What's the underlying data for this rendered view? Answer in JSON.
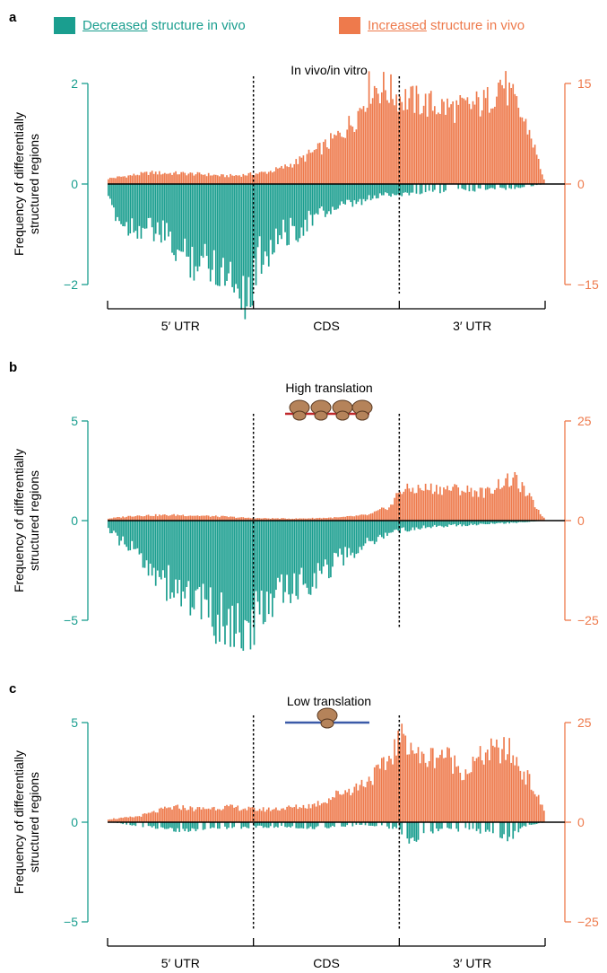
{
  "colors": {
    "decreased": "#1a9e8f",
    "increased": "#ee7a4c",
    "high_mrna": "#c0282b",
    "low_mrna": "#3b5aa8",
    "ribosome": "#b5835a"
  },
  "legend": {
    "decreased_underlined": "Decreased",
    "decreased_rest": " structure in vivo",
    "increased_underlined": "Increased",
    "increased_rest": " structure in vivo"
  },
  "ylabel_line1": "Frequency of differentially",
  "ylabel_line2": "structured regions",
  "region_labels": [
    "5′ UTR",
    "CDS",
    "3′ UTR"
  ],
  "chart_data": [
    {
      "panel": "a",
      "type": "bar",
      "title": "In vivo/in vitro",
      "regions": [
        "5′ UTR",
        "CDS",
        "3′ UTR"
      ],
      "left_axis": {
        "ticks": [
          2,
          0,
          -2
        ],
        "ylim": [
          -2,
          2
        ],
        "color": "#1a9e8f"
      },
      "right_axis": {
        "ticks": [
          15,
          0,
          -15
        ],
        "ylim": [
          -15,
          15
        ],
        "color": "#ee7a4c"
      },
      "series": [
        {
          "name": "Increased structure in vivo",
          "axis": "right",
          "x": [
            0,
            0.1,
            0.2,
            0.3,
            0.4,
            0.5,
            0.6,
            0.7,
            0.8,
            0.9,
            1.0,
            1.1,
            1.2,
            1.3,
            1.4,
            1.5,
            1.6,
            1.7,
            1.8,
            1.9,
            2.0,
            2.2,
            2.4,
            2.6,
            2.7,
            2.8,
            2.9,
            3.0
          ],
          "values": [
            0.8,
            1.1,
            1.4,
            1.7,
            1.6,
            1.6,
            1.5,
            1.4,
            1.2,
            1.3,
            1.5,
            1.8,
            2.4,
            3.3,
            4.6,
            5.8,
            7.5,
            9.8,
            14.5,
            14.3,
            13.0,
            11.9,
            11.2,
            12.2,
            15.5,
            11.8,
            7.5,
            0.2
          ]
        },
        {
          "name": "Decreased structure in vivo",
          "axis": "left",
          "x": [
            0,
            0.1,
            0.2,
            0.3,
            0.4,
            0.5,
            0.6,
            0.7,
            0.8,
            0.9,
            0.98,
            1.0,
            1.05,
            1.1,
            1.2,
            1.3,
            1.4,
            1.5,
            1.6,
            1.7,
            1.8,
            1.9,
            2.0,
            2.2,
            2.5,
            2.8,
            3.0
          ],
          "values": [
            -0.3,
            -0.8,
            -0.85,
            -0.9,
            -1.05,
            -1.4,
            -1.5,
            -1.55,
            -1.7,
            -1.9,
            -2.35,
            -1.8,
            -1.4,
            -1.3,
            -1.0,
            -0.9,
            -0.7,
            -0.55,
            -0.45,
            -0.4,
            -0.3,
            -0.2,
            -0.2,
            -0.15,
            -0.12,
            -0.08,
            0
          ]
        }
      ]
    },
    {
      "panel": "b",
      "type": "bar",
      "title": "High translation",
      "regions": [
        "5′ UTR",
        "CDS",
        "3′ UTR"
      ],
      "left_axis": {
        "ticks": [
          5,
          0,
          -5
        ],
        "ylim": [
          -5,
          5
        ],
        "color": "#1a9e8f"
      },
      "right_axis": {
        "ticks": [
          25,
          0,
          -25
        ],
        "ylim": [
          -25,
          25
        ],
        "color": "#ee7a4c"
      },
      "series": [
        {
          "name": "Increased structure in vivo",
          "axis": "right",
          "x": [
            0,
            0.2,
            0.5,
            0.8,
            1.0,
            1.3,
            1.6,
            1.8,
            1.95,
            2.0,
            2.2,
            2.4,
            2.6,
            2.7,
            2.8,
            2.9,
            3.0
          ],
          "values": [
            0.5,
            1.3,
            1.4,
            1.0,
            0.6,
            0.5,
            0.8,
            1.5,
            3.8,
            7.6,
            8.1,
            7.9,
            7.0,
            9.6,
            10.2,
            5.5,
            0.3
          ]
        },
        {
          "name": "Decreased structure in vivo",
          "axis": "left",
          "x": [
            0,
            0.1,
            0.2,
            0.3,
            0.4,
            0.5,
            0.6,
            0.7,
            0.8,
            0.9,
            0.98,
            1.0,
            1.1,
            1.2,
            1.3,
            1.4,
            1.5,
            1.6,
            1.7,
            1.8,
            1.9,
            2.0,
            2.2,
            2.5,
            2.8,
            3.0
          ],
          "values": [
            -0.4,
            -1.1,
            -1.6,
            -2.3,
            -3.1,
            -3.6,
            -4.0,
            -4.7,
            -5.1,
            -5.3,
            -6.4,
            -5.2,
            -4.0,
            -3.7,
            -3.3,
            -2.9,
            -2.4,
            -1.9,
            -1.5,
            -1.1,
            -0.7,
            -0.5,
            -0.3,
            -0.2,
            -0.1,
            0
          ]
        }
      ]
    },
    {
      "panel": "c",
      "type": "bar",
      "title": "Low translation",
      "regions": [
        "5′ UTR",
        "CDS",
        "3′ UTR"
      ],
      "left_axis": {
        "ticks": [
          5,
          0,
          -5
        ],
        "ylim": [
          -5,
          5
        ],
        "color": "#1a9e8f"
      },
      "right_axis": {
        "ticks": [
          25,
          0,
          -25
        ],
        "ylim": [
          -25,
          25
        ],
        "color": "#ee7a4c"
      },
      "series": [
        {
          "name": "Increased structure in vivo",
          "axis": "right",
          "x": [
            0,
            0.1,
            0.2,
            0.3,
            0.4,
            0.5,
            0.6,
            0.7,
            0.8,
            0.9,
            1.0,
            1.1,
            1.2,
            1.3,
            1.4,
            1.5,
            1.6,
            1.7,
            1.8,
            1.9,
            2.0,
            2.05,
            2.15,
            2.3,
            2.45,
            2.6,
            2.75,
            2.9,
            3.0
          ],
          "values": [
            0.8,
            1.0,
            1.4,
            2.3,
            3.4,
            3.8,
            3.3,
            3.5,
            3.8,
            3.6,
            3.2,
            3.2,
            3.5,
            3.8,
            4.2,
            5.5,
            7.5,
            8.6,
            11.0,
            14.0,
            20.5,
            21.5,
            15.5,
            17.5,
            12.5,
            17.5,
            18.0,
            10.0,
            2.5
          ]
        },
        {
          "name": "Decreased structure in vivo",
          "axis": "left",
          "x": [
            0,
            0.25,
            0.5,
            0.75,
            1.0,
            1.2,
            1.4,
            1.6,
            1.8,
            2.0,
            2.05,
            2.3,
            2.6,
            2.75,
            2.85,
            3.0
          ],
          "values": [
            0,
            -0.2,
            -0.4,
            -0.3,
            -0.25,
            -0.2,
            -0.3,
            -0.2,
            -0.15,
            -0.3,
            -1.0,
            -0.3,
            -0.5,
            -0.9,
            -0.2,
            0
          ]
        }
      ]
    }
  ]
}
